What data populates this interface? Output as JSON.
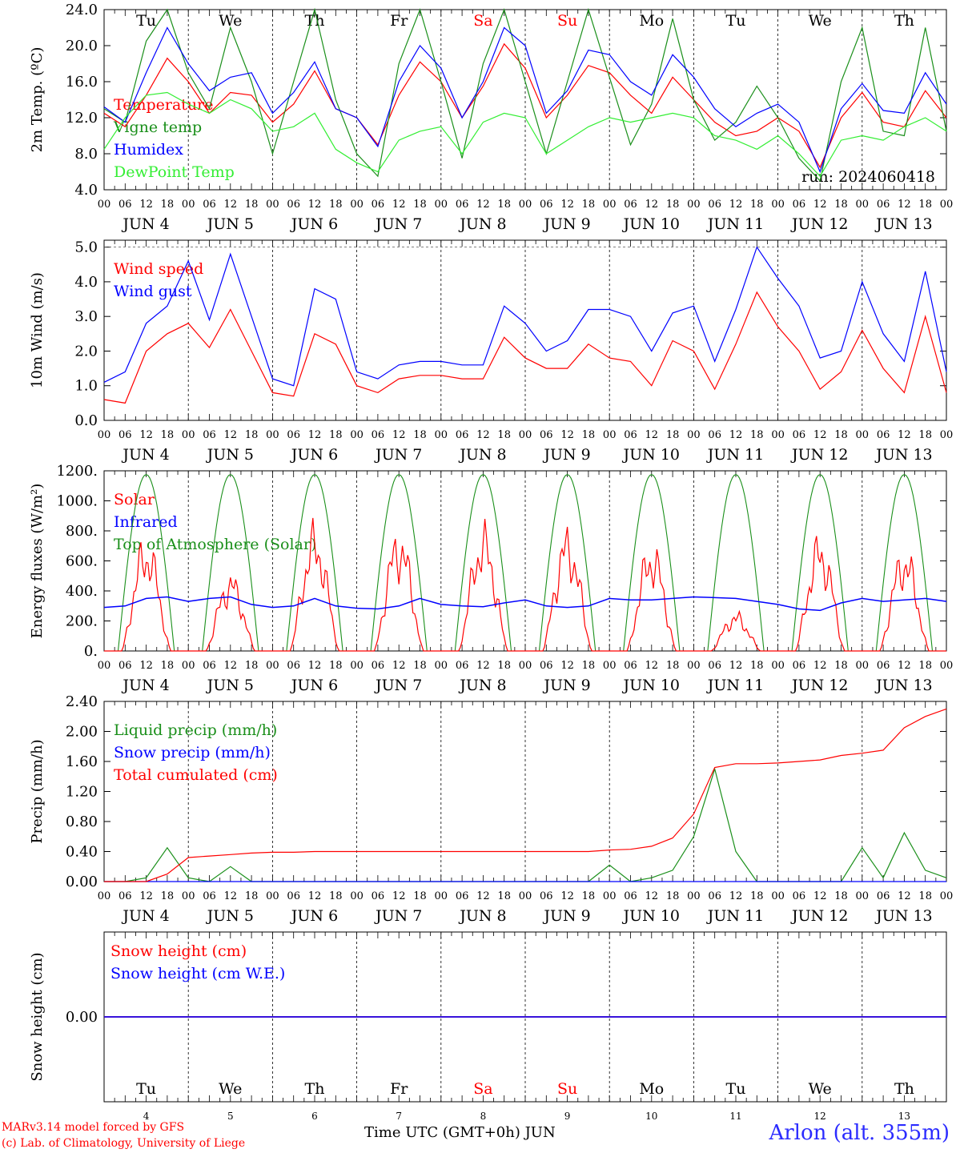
{
  "chart_data": [
    {
      "type": "line",
      "ylabel": "2m Temp. (ºC)",
      "ylim": [
        4,
        24
      ],
      "yticks": [
        "4.0",
        "8.0",
        "12.0",
        "16.0",
        "20.0",
        "24.0"
      ],
      "x_hours": [
        0,
        6,
        12,
        18,
        24,
        30,
        36,
        42,
        48,
        54,
        60,
        66,
        72,
        78,
        84,
        90,
        96,
        102,
        108,
        114,
        120,
        126,
        132,
        138,
        144,
        150,
        156,
        162,
        168,
        174,
        180,
        186,
        192,
        198,
        204,
        210,
        216,
        222,
        228,
        234,
        240
      ],
      "run_label": "run: 2024060418",
      "series": [
        {
          "name": "Temperature",
          "color": "#ff0000",
          "values": [
            12.5,
            11.0,
            14.5,
            18.6,
            16.0,
            12.5,
            14.8,
            14.5,
            11.5,
            13.5,
            17.2,
            13.0,
            12.0,
            9.0,
            14.5,
            18.2,
            16.0,
            12.0,
            15.5,
            20.2,
            17.5,
            12.0,
            14.5,
            17.8,
            17.0,
            14.5,
            12.5,
            16.5,
            14.0,
            11.5,
            10.0,
            10.5,
            12.0,
            10.5,
            6.5,
            12.0,
            14.8,
            11.5,
            11.0,
            15.0,
            12.0
          ]
        },
        {
          "name": "Vigne temp",
          "color": "#1a8f1a",
          "values": [
            13.0,
            11.5,
            20.5,
            24.0,
            17.0,
            13.0,
            22.0,
            16.0,
            8.0,
            16.0,
            24.0,
            14.0,
            8.0,
            5.5,
            18.0,
            24.0,
            16.0,
            7.5,
            18.0,
            24.0,
            16.0,
            8.0,
            16.0,
            24.0,
            16.5,
            9.0,
            13.5,
            23.0,
            14.0,
            9.5,
            11.5,
            15.5,
            12.0,
            7.5,
            5.0,
            16.0,
            22.0,
            10.5,
            10.0,
            22.0,
            10.5
          ]
        },
        {
          "name": "Humidex",
          "color": "#0000ff",
          "values": [
            13.2,
            11.5,
            17.0,
            22.0,
            18.0,
            15.0,
            16.5,
            17.0,
            12.5,
            14.8,
            18.2,
            13.0,
            12.0,
            8.8,
            16.0,
            20.0,
            17.5,
            12.0,
            16.0,
            22.0,
            20.0,
            12.5,
            15.0,
            19.5,
            19.0,
            16.0,
            14.5,
            19.0,
            16.5,
            13.0,
            11.0,
            12.5,
            13.5,
            11.5,
            6.0,
            13.0,
            15.8,
            12.8,
            12.5,
            17.0,
            13.5
          ]
        },
        {
          "name": "DewPoint Temp",
          "color": "#33ee33",
          "values": [
            8.5,
            12.0,
            14.5,
            14.8,
            13.5,
            12.5,
            14.0,
            13.0,
            10.5,
            11.0,
            12.5,
            8.5,
            7.0,
            6.0,
            9.5,
            10.5,
            11.0,
            8.0,
            11.5,
            12.5,
            12.0,
            8.0,
            9.5,
            11.0,
            12.0,
            11.5,
            12.0,
            12.5,
            12.0,
            10.0,
            9.5,
            8.5,
            10.0,
            8.0,
            5.5,
            9.5,
            10.0,
            9.5,
            11.0,
            12.0,
            10.5
          ]
        }
      ]
    },
    {
      "type": "line",
      "ylabel": "10m Wind (m/s)",
      "ylim": [
        0,
        5.2
      ],
      "yticks": [
        "0.0",
        "1.0",
        "2.0",
        "3.0",
        "4.0",
        "5.0"
      ],
      "x_hours": [
        0,
        6,
        12,
        18,
        24,
        30,
        36,
        42,
        48,
        54,
        60,
        66,
        72,
        78,
        84,
        90,
        96,
        102,
        108,
        114,
        120,
        126,
        132,
        138,
        144,
        150,
        156,
        162,
        168,
        174,
        180,
        186,
        192,
        198,
        204,
        210,
        216,
        222,
        228,
        234,
        240
      ],
      "series": [
        {
          "name": "Wind speed",
          "color": "#ff0000",
          "values": [
            0.6,
            0.5,
            2.0,
            2.5,
            2.8,
            2.1,
            3.2,
            2.0,
            0.8,
            0.7,
            2.5,
            2.2,
            1.0,
            0.8,
            1.2,
            1.3,
            1.3,
            1.2,
            1.2,
            2.4,
            1.8,
            1.5,
            1.5,
            2.2,
            1.8,
            1.7,
            1.0,
            2.3,
            2.0,
            0.9,
            2.2,
            3.7,
            2.7,
            2.0,
            0.9,
            1.4,
            2.6,
            1.5,
            0.8,
            3.0,
            0.8
          ]
        },
        {
          "name": "Wind gust",
          "color": "#0000ff",
          "values": [
            1.1,
            1.4,
            2.8,
            3.3,
            4.6,
            2.9,
            4.8,
            3.0,
            1.2,
            1.0,
            3.8,
            3.5,
            1.4,
            1.2,
            1.6,
            1.7,
            1.7,
            1.6,
            1.6,
            3.3,
            2.8,
            2.0,
            2.3,
            3.2,
            3.2,
            3.0,
            2.0,
            3.1,
            3.3,
            1.7,
            3.2,
            5.0,
            4.1,
            3.3,
            1.8,
            2.0,
            4.0,
            2.5,
            1.7,
            4.3,
            1.4
          ]
        }
      ]
    },
    {
      "type": "line",
      "ylabel": "Energy fluxes (W/m²)",
      "ylim": [
        0,
        1200
      ],
      "yticks": [
        "0.",
        "200.",
        "400.",
        "600.",
        "800.",
        "1000.",
        "1200."
      ],
      "series": [
        {
          "name": "Solar",
          "color": "#ff0000",
          "peaks": [
            820,
            560,
            900,
            880,
            900,
            880,
            780,
            280,
            830,
            750
          ]
        },
        {
          "name": "Infrared",
          "color": "#0000ff",
          "values": [
            290,
            300,
            350,
            360,
            330,
            350,
            360,
            310,
            290,
            300,
            350,
            300,
            285,
            280,
            300,
            350,
            310,
            300,
            295,
            320,
            340,
            300,
            290,
            300,
            350,
            340,
            340,
            350,
            360,
            355,
            350,
            330,
            310,
            280,
            270,
            320,
            350,
            330,
            340,
            350,
            330
          ]
        },
        {
          "name": "Top of Atmosphere (Solar)",
          "color": "#1a8f1a",
          "peak": 1175
        }
      ]
    },
    {
      "type": "line",
      "ylabel": "Precip (mm/h)",
      "ylim": [
        0,
        2.4
      ],
      "yticks": [
        "0.00",
        "0.40",
        "0.80",
        "1.20",
        "1.60",
        "2.00",
        "2.40"
      ],
      "x_hours": [
        0,
        6,
        12,
        18,
        24,
        30,
        36,
        42,
        48,
        54,
        60,
        66,
        72,
        78,
        84,
        90,
        96,
        102,
        108,
        114,
        120,
        126,
        132,
        138,
        144,
        150,
        156,
        162,
        168,
        174,
        180,
        186,
        192,
        198,
        204,
        210,
        216,
        222,
        228,
        234,
        240
      ],
      "series": [
        {
          "name": "Liquid precip (mm/h)",
          "color": "#1a8f1a",
          "values": [
            0,
            0,
            0.05,
            0.45,
            0.05,
            0,
            0.2,
            0,
            0,
            0,
            0,
            0,
            0,
            0,
            0,
            0,
            0,
            0,
            0,
            0,
            0,
            0,
            0,
            0,
            0.22,
            0,
            0.05,
            0.15,
            0.6,
            1.5,
            0.4,
            0,
            0,
            0,
            0,
            0,
            0.45,
            0.05,
            0.65,
            0.15,
            0.05
          ]
        },
        {
          "name": "Snow precip (mm/h)",
          "color": "#0000ff",
          "values": [
            0,
            0,
            0,
            0,
            0,
            0,
            0,
            0,
            0,
            0,
            0,
            0,
            0,
            0,
            0,
            0,
            0,
            0,
            0,
            0,
            0,
            0,
            0,
            0,
            0,
            0,
            0,
            0,
            0,
            0,
            0,
            0,
            0,
            0,
            0,
            0,
            0,
            0,
            0,
            0,
            0
          ]
        },
        {
          "name": "Total cumulated (cm)",
          "color": "#ff0000",
          "values": [
            0,
            0,
            0,
            0.1,
            0.32,
            0.34,
            0.36,
            0.38,
            0.39,
            0.39,
            0.4,
            0.4,
            0.4,
            0.4,
            0.4,
            0.4,
            0.4,
            0.4,
            0.4,
            0.4,
            0.4,
            0.4,
            0.4,
            0.4,
            0.42,
            0.43,
            0.47,
            0.58,
            0.9,
            1.52,
            1.57,
            1.57,
            1.58,
            1.6,
            1.62,
            1.68,
            1.71,
            1.75,
            2.05,
            2.2,
            2.3
          ]
        }
      ]
    },
    {
      "type": "line",
      "ylabel": "Snow height (cm)",
      "ylim": [
        -1,
        1
      ],
      "yticks": [
        "0.00"
      ],
      "series": [
        {
          "name": "Snow height (cm)",
          "color": "#ff0000",
          "values": [
            0,
            0
          ]
        },
        {
          "name": "Snow height (cm W.E.)",
          "color": "#0000ff",
          "values": [
            0,
            0
          ]
        }
      ]
    }
  ],
  "x_axis": {
    "hour_ticks": [
      "00",
      "06",
      "12",
      "18"
    ],
    "final_tick": "00",
    "day_labels": [
      "JUN  4",
      "JUN  5",
      "JUN  6",
      "JUN  7",
      "JUN  8",
      "JUN  9",
      "JUN 10",
      "JUN 11",
      "JUN 12",
      "JUN 13"
    ],
    "weekdays": [
      "Tu",
      "We",
      "Th",
      "Fr",
      "Sa",
      "Su",
      "Mo",
      "Tu",
      "We",
      "Th"
    ],
    "weekday_colors": [
      "#000000",
      "#000000",
      "#000000",
      "#000000",
      "#ff0000",
      "#ff0000",
      "#000000",
      "#000000",
      "#000000",
      "#000000"
    ],
    "day_numbers": [
      "4",
      "5",
      "6",
      "7",
      "8",
      "9",
      "10",
      "11",
      "12",
      "13"
    ],
    "title": "Time UTC (GMT+0h) JUN"
  },
  "footer": {
    "credit_line1": "MARv3.14 model forced by GFS",
    "credit_line2": "(c) Lab. of Climatology, University of Liege",
    "station": "Arlon (alt. 355m)"
  }
}
